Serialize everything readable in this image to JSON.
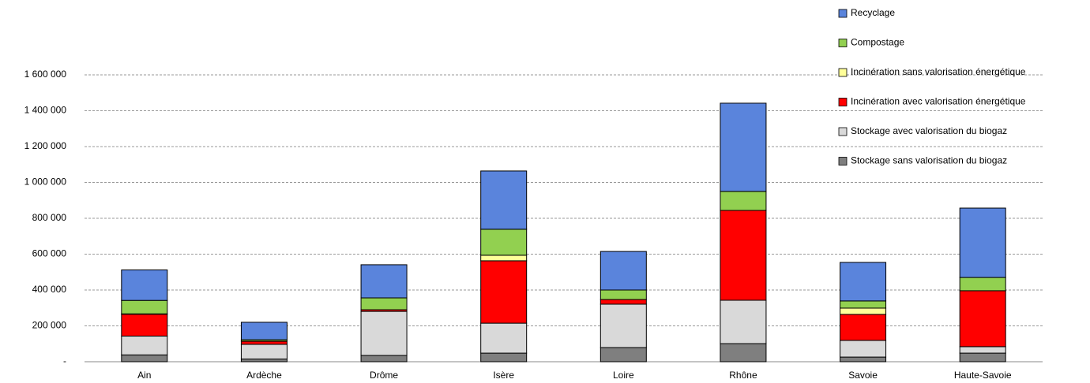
{
  "chart_data": {
    "type": "stacked_bar",
    "categories": [
      "Ain",
      "Ardèche",
      "Drôme",
      "Isère",
      "Loire",
      "Rhône",
      "Savoie",
      "Haute-Savoie"
    ],
    "series": [
      {
        "name": "Stockage sans valorisation du biogaz",
        "color": "#7f7f7f",
        "values": [
          38000,
          15000,
          35000,
          48000,
          79000,
          101000,
          26000,
          48000
        ]
      },
      {
        "name": "Stockage avec valorisation du biogaz",
        "color": "#d9d9d9",
        "values": [
          105000,
          82000,
          246000,
          167000,
          242000,
          242000,
          93000,
          36000
        ]
      },
      {
        "name": "Incinération avec valorisation énergétique",
        "color": "#ff0000",
        "values": [
          122000,
          17000,
          9000,
          348000,
          26000,
          501000,
          145000,
          312000
        ]
      },
      {
        "name": "Incinération sans valorisation énergétique",
        "color": "#ffff99",
        "values": [
          2000,
          1000,
          0,
          31000,
          0,
          0,
          35000,
          0
        ]
      },
      {
        "name": "Compostage",
        "color": "#92d050",
        "values": [
          75000,
          8000,
          66000,
          145000,
          53000,
          106000,
          40000,
          74000
        ]
      },
      {
        "name": "Recyclage",
        "color": "#5a84dc",
        "values": [
          170000,
          97000,
          185000,
          325000,
          215000,
          492000,
          215000,
          387000
        ]
      }
    ],
    "ylim": [
      0,
      1600000
    ],
    "yticks": [
      {
        "value": 0,
        "label": "-"
      },
      {
        "value": 200000,
        "label": "200 000"
      },
      {
        "value": 400000,
        "label": "400 000"
      },
      {
        "value": 600000,
        "label": "600 000"
      },
      {
        "value": 800000,
        "label": "800 000"
      },
      {
        "value": 1000000,
        "label": "1 000 000"
      },
      {
        "value": 1200000,
        "label": "1 200 000"
      },
      {
        "value": 1400000,
        "label": "1 400 000"
      },
      {
        "value": 1600000,
        "label": "1 600 000"
      }
    ],
    "grid": true
  }
}
